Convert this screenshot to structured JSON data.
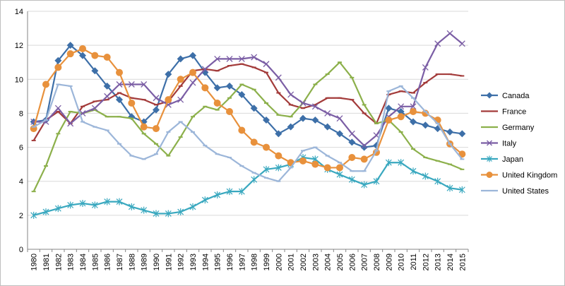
{
  "chart_data": {
    "type": "line",
    "title": "",
    "xlabel": "",
    "ylabel": "",
    "ylim": [
      0,
      14
    ],
    "yticks": [
      0,
      2,
      4,
      6,
      8,
      10,
      12,
      14
    ],
    "grid": "horizontal",
    "legend_position": "right",
    "x": [
      "1980",
      "1981",
      "1982",
      "1983",
      "1984",
      "1985",
      "1986",
      "1987",
      "1988",
      "1989",
      "1990",
      "1991",
      "1992",
      "1993",
      "1994",
      "1995",
      "1996",
      "1997",
      "1998",
      "1999",
      "2000",
      "2001",
      "2002",
      "2003",
      "2004",
      "2005",
      "2006",
      "2007",
      "2008",
      "2009",
      "2010",
      "2011",
      "2012",
      "2013",
      "2014",
      "2015"
    ],
    "series": [
      {
        "name": "Canada",
        "color": "#3d6fa8",
        "marker": "diamond",
        "values": [
          7.5,
          7.6,
          11.1,
          12.0,
          11.4,
          10.5,
          9.6,
          8.8,
          7.8,
          7.5,
          8.2,
          10.3,
          11.2,
          11.4,
          10.4,
          9.5,
          9.6,
          9.1,
          8.3,
          7.6,
          6.8,
          7.2,
          7.7,
          7.6,
          7.2,
          6.8,
          6.3,
          6.0,
          6.1,
          8.3,
          8.1,
          7.5,
          7.3,
          7.1,
          6.9,
          6.8
        ]
      },
      {
        "name": "France",
        "color": "#a33b3a",
        "marker": "dash",
        "values": [
          6.4,
          7.6,
          8.1,
          7.4,
          8.4,
          8.7,
          8.8,
          9.2,
          8.9,
          8.8,
          8.5,
          8.7,
          9.6,
          10.5,
          10.6,
          10.5,
          10.8,
          10.9,
          10.7,
          10.4,
          9.2,
          8.5,
          8.3,
          8.5,
          8.9,
          8.9,
          8.8,
          8.0,
          7.4,
          9.1,
          9.3,
          9.2,
          9.8,
          10.3,
          10.3,
          10.2
        ]
      },
      {
        "name": "Germany",
        "color": "#8cb04b",
        "marker": "dash",
        "values": [
          3.4,
          4.9,
          6.8,
          8.1,
          8.0,
          8.2,
          7.8,
          7.8,
          7.7,
          6.8,
          6.2,
          5.5,
          6.6,
          7.8,
          8.4,
          8.2,
          8.9,
          9.7,
          9.4,
          8.6,
          7.9,
          7.8,
          8.6,
          9.7,
          10.3,
          11.0,
          10.1,
          8.5,
          7.4,
          7.6,
          6.9,
          5.9,
          5.4,
          5.2,
          5.0,
          4.7
        ]
      },
      {
        "name": "Italy",
        "color": "#7b5ea5",
        "marker": "x",
        "values": [
          7.5,
          7.5,
          8.3,
          7.4,
          8.0,
          8.3,
          9.0,
          9.7,
          9.7,
          9.7,
          8.9,
          8.5,
          8.8,
          9.8,
          10.6,
          11.2,
          11.2,
          11.2,
          11.3,
          10.9,
          10.1,
          9.1,
          8.6,
          8.4,
          8.0,
          7.7,
          6.8,
          6.1,
          6.7,
          7.8,
          8.4,
          8.4,
          10.7,
          12.1,
          12.7,
          12.1
        ]
      },
      {
        "name": "Japan",
        "color": "#39a8bf",
        "marker": "star",
        "values": [
          2.0,
          2.2,
          2.4,
          2.6,
          2.7,
          2.6,
          2.8,
          2.8,
          2.5,
          2.3,
          2.1,
          2.1,
          2.2,
          2.5,
          2.9,
          3.2,
          3.4,
          3.4,
          4.1,
          4.7,
          4.8,
          5.0,
          5.4,
          5.3,
          4.7,
          4.4,
          4.1,
          3.8,
          4.0,
          5.1,
          5.1,
          4.6,
          4.3,
          4.0,
          3.6,
          3.5
        ]
      },
      {
        "name": "United Kingdom",
        "color": "#e8913c",
        "marker": "circle",
        "values": [
          7.1,
          9.7,
          10.7,
          11.5,
          11.8,
          11.4,
          11.3,
          10.4,
          8.6,
          7.2,
          7.1,
          8.8,
          10.0,
          10.4,
          9.5,
          8.6,
          8.1,
          7.0,
          6.3,
          6.0,
          5.5,
          5.1,
          5.2,
          5.0,
          4.8,
          4.8,
          5.4,
          5.3,
          5.7,
          7.6,
          7.8,
          8.1,
          8.0,
          7.6,
          6.2,
          5.6
        ]
      },
      {
        "name": "United States",
        "color": "#9cb6d9",
        "marker": "dash",
        "values": [
          7.2,
          7.6,
          9.7,
          9.6,
          7.5,
          7.2,
          7.0,
          6.2,
          5.5,
          5.3,
          5.6,
          6.9,
          7.5,
          6.9,
          6.1,
          5.6,
          5.4,
          4.9,
          4.5,
          4.2,
          4.0,
          4.8,
          5.8,
          6.0,
          5.5,
          5.1,
          4.6,
          4.6,
          5.8,
          9.3,
          9.6,
          8.9,
          8.1,
          7.4,
          6.2,
          5.3
        ]
      }
    ]
  }
}
